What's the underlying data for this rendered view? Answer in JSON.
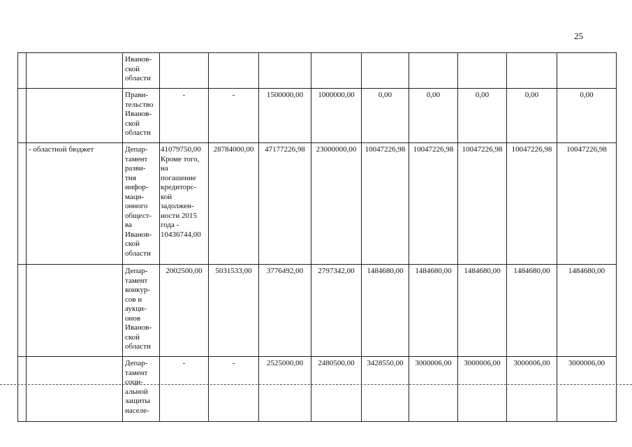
{
  "page_number": "25",
  "table": {
    "rows": [
      {
        "department": "Иванов-\nской\nобласти"
      },
      {
        "department": "Прави-\nтельство\nИванов-\nской\nобласти",
        "values": [
          "-",
          "-",
          "1500000,00",
          "1000000,00",
          "0,00",
          "0,00",
          "0,00",
          "0,00",
          "0,00"
        ]
      },
      {
        "group": "- областной бюджет",
        "department": "Депар-\nтамент\nразви-\nтия\nинфор-\nмаци-\nонного\nобщест-\nва\nИванов-\nской\nобласти",
        "values": [
          "41079750,00\nКроме того,\nна\nпогашение\nкредиторс-\nкой\nзадолжен-\nности 2015\nгода -\n10436744,00",
          "28784000,00",
          "47177226,98",
          "23000000,00",
          "10047226,98",
          "10047226,98",
          "10047226,98",
          "10047226,98",
          "10047226,98"
        ]
      },
      {
        "department": "Депар-\nтамент\nконкур-\nсов и\nаукци-\nонов\nИванов-\nской\nобласти",
        "values": [
          "2002500,00",
          "5031533,00",
          "3776492,00",
          "2797342,00",
          "1484680,00",
          "1484680,00",
          "1484680,00",
          "1484680,00",
          "1484680,00"
        ]
      },
      {
        "department": "Депар-\nтамент\nсоци-\nальной\nзащиты\nнаселе-",
        "values": [
          "-",
          "-",
          "2525000,00",
          "2480500,00",
          "3428550,00",
          "3000006,00",
          "3000006,00",
          "3000006,00",
          "3000006,00"
        ]
      }
    ]
  }
}
